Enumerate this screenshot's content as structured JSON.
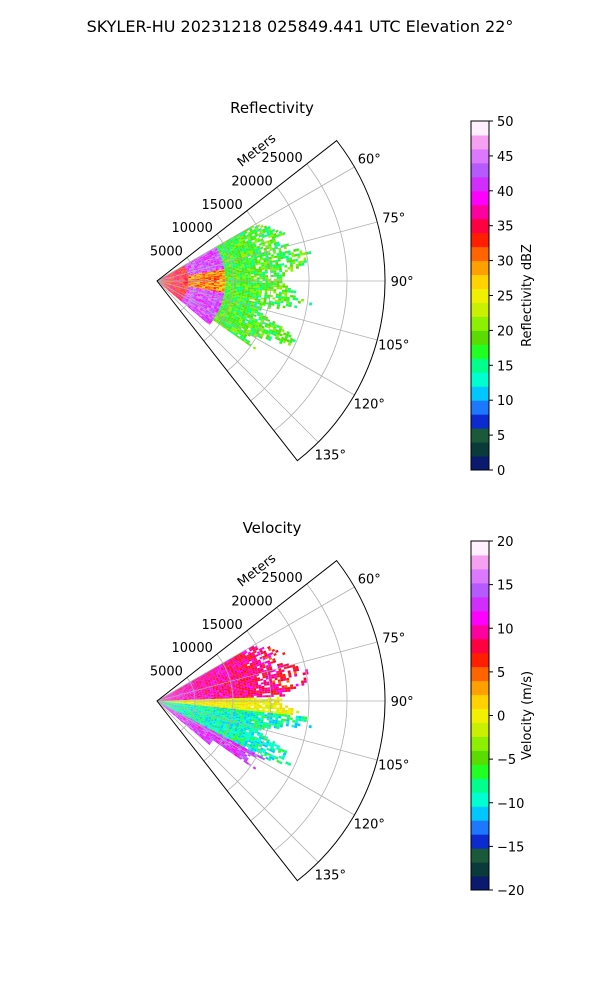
{
  "suptitle": "SKYLER-HU  20231218  025849.441 UTC Elevation 22°",
  "radial_unit_label": "Meters",
  "chart_data": [
    {
      "type": "heatmap",
      "subtype": "polar-sector-ppi",
      "title": "Reflectivity",
      "theta_range_deg": [
        52,
        142
      ],
      "radius_range_m": [
        0,
        30000
      ],
      "radial_ticks": [
        "5000",
        "10000",
        "15000",
        "20000",
        "25000"
      ],
      "angle_ticks": [
        "60°",
        "75°",
        "90°",
        "105°",
        "120°",
        "135°"
      ],
      "grid": true,
      "colorbar": {
        "label": "Reflectivity dBZ",
        "range": [
          0,
          50
        ],
        "ticks": [
          "0",
          "5",
          "10",
          "15",
          "20",
          "25",
          "30",
          "35",
          "40",
          "45",
          "50"
        ],
        "colormap": "pyart_HomeyerRainbow-like",
        "colors": [
          "#0b1a6e",
          "#0b3a3a",
          "#1a5a3a",
          "#0b2ad0",
          "#1e78ff",
          "#00c8ff",
          "#00ffd0",
          "#00ff8c",
          "#22ff22",
          "#5adc00",
          "#8cf000",
          "#c8f000",
          "#f0f000",
          "#ffd200",
          "#ffa000",
          "#ff6400",
          "#ff1e00",
          "#ff0040",
          "#ff00a0",
          "#ff00ff",
          "#d22dff",
          "#b45aff",
          "#dc78ff",
          "#f5a0f0",
          "#fff0ff"
        ]
      },
      "dominant_values_description": "near-range echoes 25-45 dBZ (orange/red/magenta), mid-range 10-25 dBZ (green)"
    },
    {
      "type": "heatmap",
      "subtype": "polar-sector-ppi",
      "title": "Velocity",
      "theta_range_deg": [
        52,
        142
      ],
      "radius_range_m": [
        0,
        30000
      ],
      "radial_ticks": [
        "5000",
        "10000",
        "15000",
        "20000",
        "25000"
      ],
      "angle_ticks": [
        "60°",
        "75°",
        "90°",
        "105°",
        "120°",
        "135°"
      ],
      "grid": true,
      "colorbar": {
        "label": "Velocity (m/s)",
        "range": [
          -20,
          20
        ],
        "ticks": [
          "−20",
          "−15",
          "−10",
          "−5",
          "0",
          "5",
          "10",
          "15",
          "20"
        ],
        "colormap": "diverging-rainbow",
        "colors": [
          "#0b1a6e",
          "#0b3a3a",
          "#1a5a3a",
          "#0b2ad0",
          "#1e78ff",
          "#00c8ff",
          "#00ffd0",
          "#00ff8c",
          "#22ff22",
          "#5adc00",
          "#8cf000",
          "#c8f000",
          "#f0f000",
          "#ffd200",
          "#ffa000",
          "#ff6400",
          "#ff1e00",
          "#ff0040",
          "#ff00a0",
          "#ff00ff",
          "#d22dff",
          "#b45aff",
          "#dc78ff",
          "#f5a0f0",
          "#fff0ff"
        ]
      },
      "dominant_values_description": "north part +5 to +15 m/s (red/magenta), south part -5 to -15 m/s (green/cyan)"
    }
  ]
}
